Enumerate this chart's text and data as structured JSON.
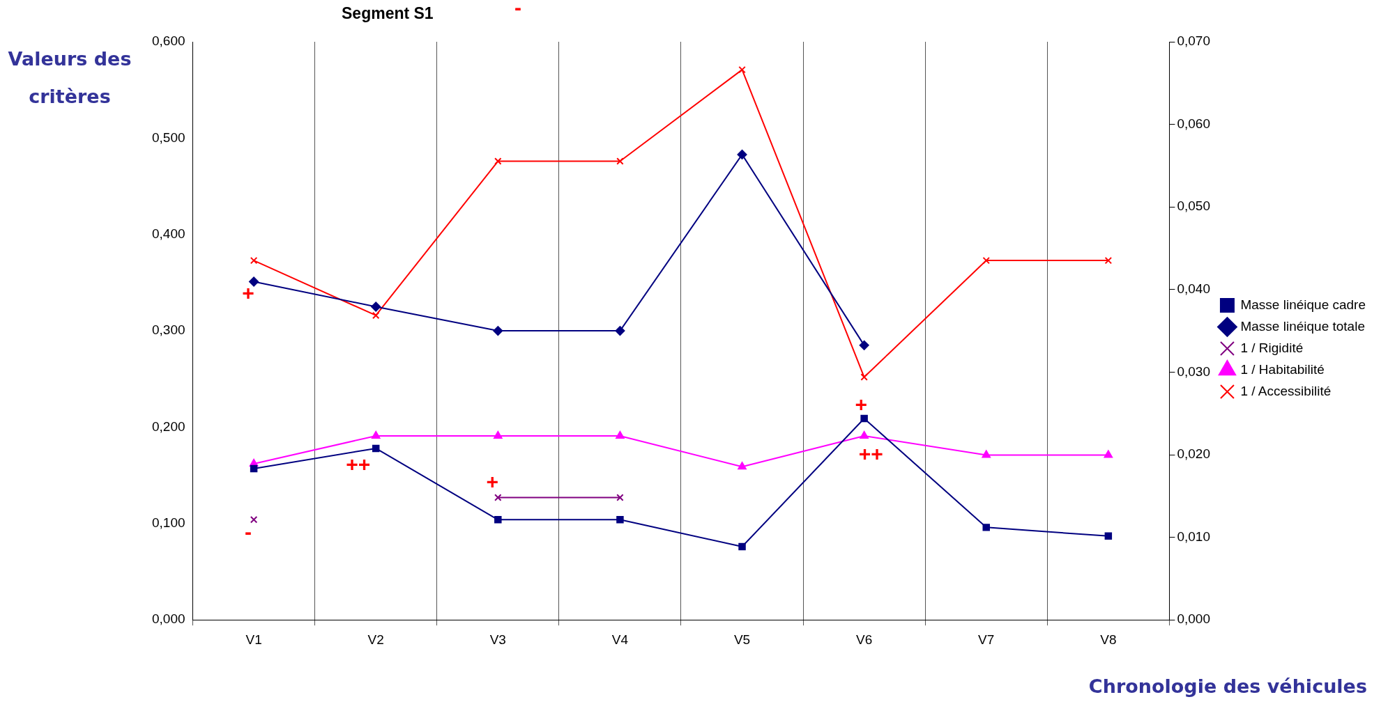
{
  "chart_data": {
    "type": "line",
    "title": "Segment S1",
    "ylabel": "Valeurs des critères",
    "xlabel": "Chronologie des véhicules",
    "categories": [
      "V1",
      "V2",
      "V3",
      "V4",
      "V5",
      "V6",
      "V7",
      "V8"
    ],
    "series": [
      {
        "name": "Masse linéique cadre",
        "color": "#000080",
        "marker": "square",
        "values": [
          0.157,
          0.178,
          0.104,
          0.104,
          0.076,
          0.209,
          0.096,
          0.087
        ]
      },
      {
        "name": "Masse linéique totale",
        "color": "#000080",
        "marker": "diamond",
        "values": [
          0.351,
          0.325,
          0.3,
          0.3,
          0.483,
          0.285,
          null,
          null
        ]
      },
      {
        "name": "1 / Rigidité",
        "color": "#800080",
        "marker": "cross",
        "values": [
          0.104,
          null,
          0.127,
          0.127,
          null,
          null,
          null,
          null
        ]
      },
      {
        "name": "1 / Habitabilité",
        "color": "#ff00ff",
        "marker": "triangle",
        "values": [
          0.162,
          0.191,
          0.191,
          0.191,
          0.159,
          0.191,
          0.171,
          0.171
        ]
      },
      {
        "name": "1 / Accessibilité",
        "color": "#ff0000",
        "marker": "cross",
        "values": [
          0.373,
          0.316,
          0.476,
          0.476,
          0.571,
          0.252,
          0.373,
          0.373
        ]
      }
    ],
    "ylim": [
      0,
      0.6
    ],
    "yticks": [
      {
        "value": 0,
        "label": "0,000"
      },
      {
        "value": 0.1,
        "label": "0,100"
      },
      {
        "value": 0.2,
        "label": "0,200"
      },
      {
        "value": 0.3,
        "label": "0,300"
      },
      {
        "value": 0.4,
        "label": "0,400"
      },
      {
        "value": 0.5,
        "label": "0,500"
      },
      {
        "value": 0.6,
        "label": "0,600"
      }
    ],
    "y2lim": [
      0,
      0.07
    ],
    "y2ticks": [
      {
        "value": 0,
        "label": "0,000"
      },
      {
        "value": 0.01,
        "label": "0,010"
      },
      {
        "value": 0.02,
        "label": "0,020"
      },
      {
        "value": 0.03,
        "label": "0,030"
      },
      {
        "value": 0.04,
        "label": "0,040"
      },
      {
        "value": 0.05,
        "label": "0,050"
      },
      {
        "value": 0.06,
        "label": "0,060"
      },
      {
        "value": 0.07,
        "label": "0,070"
      }
    ],
    "grid": "x",
    "legend": "right",
    "annotations": [
      "-",
      "+",
      "-",
      "++",
      "+",
      "+",
      "++"
    ]
  }
}
